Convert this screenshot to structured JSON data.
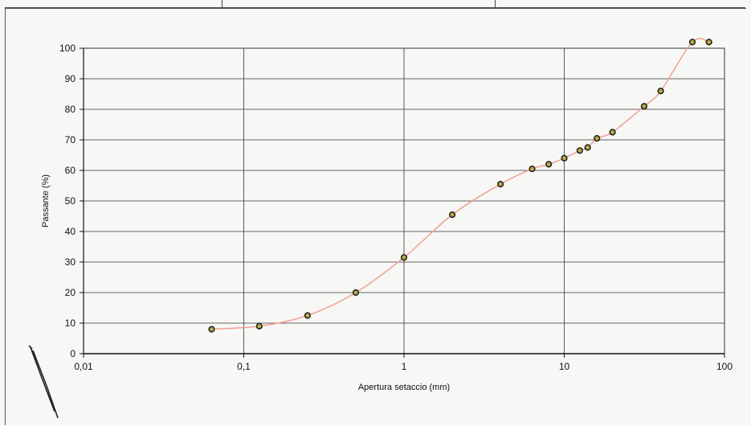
{
  "chart_data": {
    "type": "scatter",
    "title": "",
    "xlabel": "Apertura setaccio (mm)",
    "ylabel": "Passante (%)",
    "x_scale": "log",
    "xlim": [
      0.01,
      100
    ],
    "ylim": [
      0,
      100
    ],
    "x_ticks": [
      {
        "value": 0.01,
        "label": "0,01"
      },
      {
        "value": 0.1,
        "label": "0,1"
      },
      {
        "value": 1,
        "label": "1"
      },
      {
        "value": 10,
        "label": "10"
      },
      {
        "value": 100,
        "label": "100"
      }
    ],
    "y_ticks": [
      {
        "value": 0,
        "label": "0"
      },
      {
        "value": 10,
        "label": "10"
      },
      {
        "value": 20,
        "label": "20"
      },
      {
        "value": 30,
        "label": "30"
      },
      {
        "value": 40,
        "label": "40"
      },
      {
        "value": 50,
        "label": "50"
      },
      {
        "value": 60,
        "label": "60"
      },
      {
        "value": 70,
        "label": "70"
      },
      {
        "value": 80,
        "label": "80"
      },
      {
        "value": 90,
        "label": "90"
      },
      {
        "value": 100,
        "label": "100"
      }
    ],
    "grid": true,
    "series": [
      {
        "points": [
          {
            "x": 0.063,
            "y": 8
          },
          {
            "x": 0.125,
            "y": 9
          },
          {
            "x": 0.25,
            "y": 12.5
          },
          {
            "x": 0.5,
            "y": 20
          },
          {
            "x": 1,
            "y": 31.5
          },
          {
            "x": 2,
            "y": 45.5
          },
          {
            "x": 4,
            "y": 55.5
          },
          {
            "x": 6.3,
            "y": 60.5
          },
          {
            "x": 8,
            "y": 62
          },
          {
            "x": 10,
            "y": 64
          },
          {
            "x": 12.5,
            "y": 66.5
          },
          {
            "x": 14,
            "y": 67.5
          },
          {
            "x": 16,
            "y": 70.5
          },
          {
            "x": 20,
            "y": 72.5
          },
          {
            "x": 31.5,
            "y": 81
          },
          {
            "x": 40,
            "y": 86
          },
          {
            "x": 63,
            "y": 102
          },
          {
            "x": 80,
            "y": 102
          }
        ],
        "line_color": "#f0a090",
        "marker_fill": "#b8b040",
        "marker_edge": "#222222"
      }
    ]
  }
}
